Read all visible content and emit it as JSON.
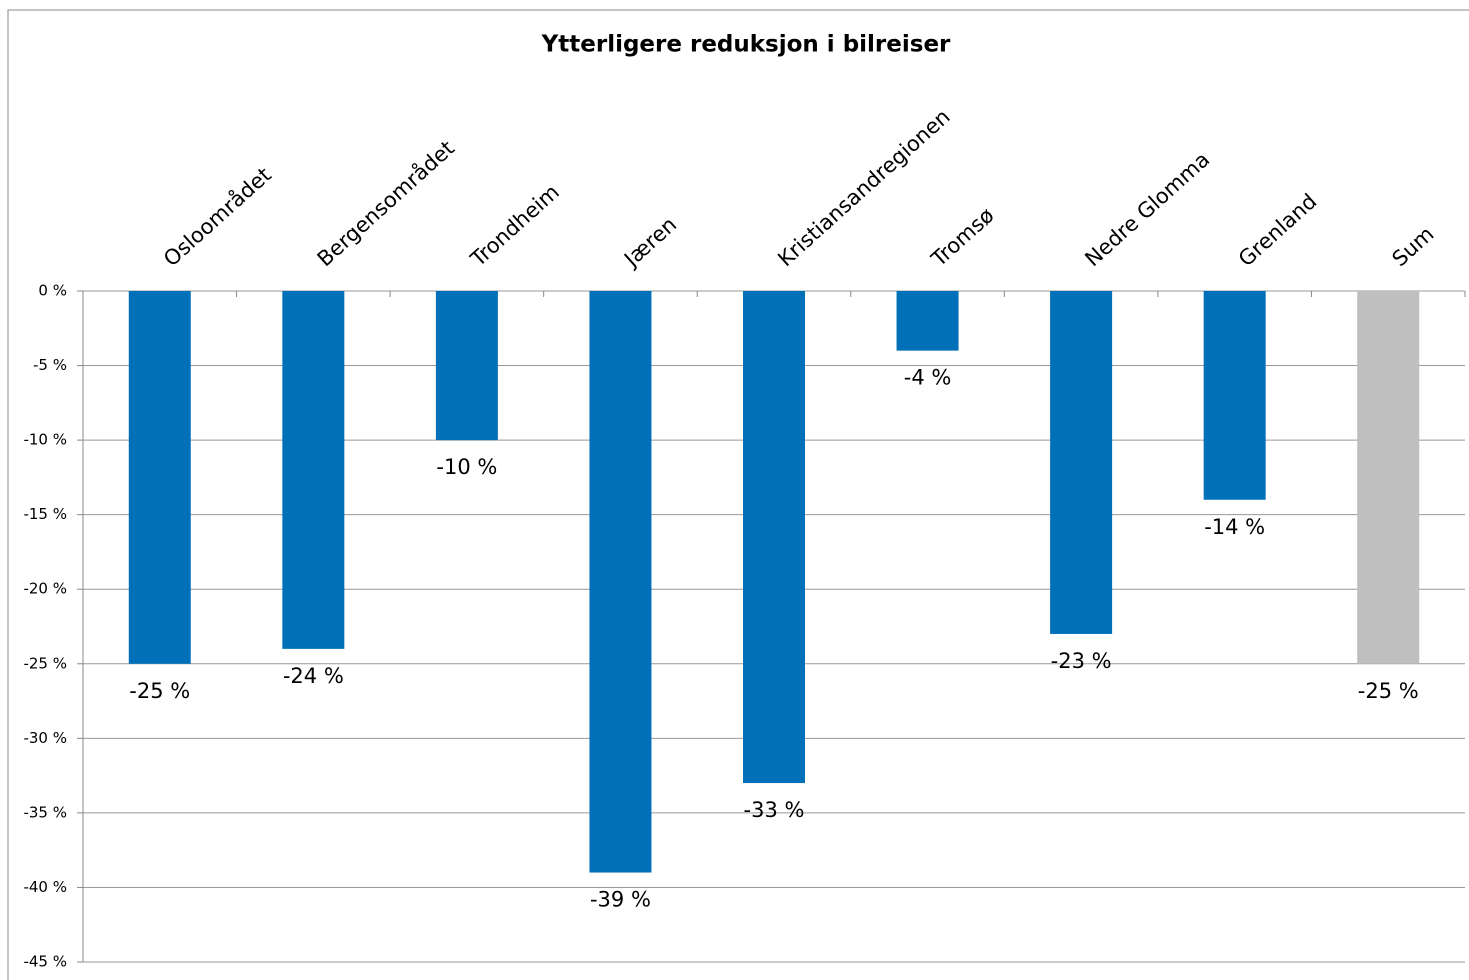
{
  "chart_data": {
    "type": "bar",
    "title": "Ytterligere reduksjon i bilreiser",
    "categories": [
      "Osloområdet",
      "Bergensområdet",
      "Trondheim",
      "Jæren",
      "Kristiansandregionen",
      "Tromsø",
      "Nedre Glomma",
      "Grenland",
      "Sum"
    ],
    "values": [
      -25,
      -24,
      -10,
      -39,
      -33,
      -4,
      -23,
      -14,
      -25
    ],
    "value_labels": [
      "-25 %",
      "-24 %",
      "-10 %",
      "-39 %",
      "-33 %",
      "-4 %",
      "-23 %",
      "-14 %",
      "-25 %"
    ],
    "colors": [
      "#0070b8",
      "#0070b8",
      "#0070b8",
      "#0070b8",
      "#0070b8",
      "#0070b8",
      "#0070b8",
      "#0070b8",
      "#bfbfbf"
    ],
    "ylim": [
      -45,
      0
    ],
    "yticks": [
      {
        "value": 0,
        "label": "0 %"
      },
      {
        "value": -5,
        "label": "-5 %"
      },
      {
        "value": -10,
        "label": "-10 %"
      },
      {
        "value": -15,
        "label": "-15 %"
      },
      {
        "value": -20,
        "label": "-20 %"
      },
      {
        "value": -25,
        "label": "-25 %"
      },
      {
        "value": -30,
        "label": "-30 %"
      },
      {
        "value": -35,
        "label": "-35 %"
      },
      {
        "value": -40,
        "label": "-40 %"
      },
      {
        "value": -45,
        "label": "-45 %"
      }
    ],
    "grid": true
  }
}
